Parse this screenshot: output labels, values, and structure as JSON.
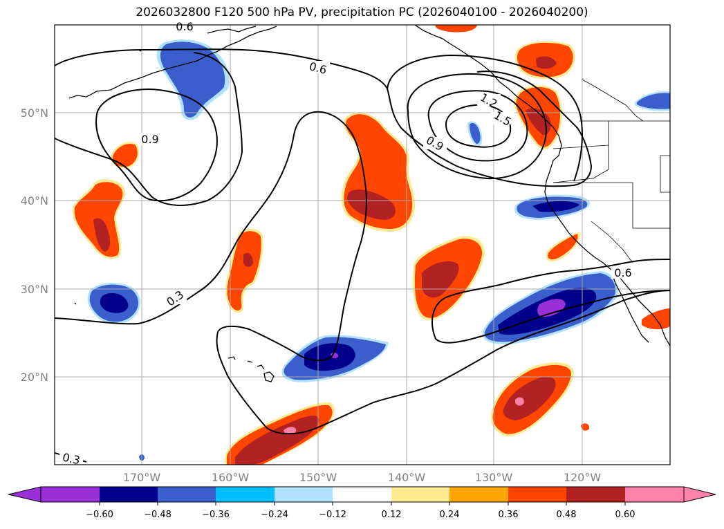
{
  "title": "2026032800 F120 500 hPa PV, precipitation PC (2026040100 - 2026040200)",
  "lat_labels": [
    "50°N",
    "40°N",
    "30°N",
    "20°N"
  ],
  "lon_labels": [
    "170°W",
    "160°W",
    "150°W",
    "140°W",
    "130°W",
    "120°W"
  ],
  "contour_labels": [
    "0.6",
    "0.6",
    "0.9",
    "0.3",
    "1.2",
    "1.5",
    "0.9",
    "0.6",
    "0.3"
  ],
  "colorbar": {
    "ticks": [
      "−0.60",
      "−0.48",
      "−0.36",
      "−0.24",
      "−0.12",
      "0.12",
      "0.24",
      "0.36",
      "0.48",
      "0.60"
    ],
    "colors": [
      "#9b30d8",
      "#00008b",
      "#3a5fcd",
      "#00bfff",
      "#b0e2ff",
      "#ffffff",
      "#ffe991",
      "#ffa500",
      "#ff4500",
      "#b22222",
      "#ff82ab",
      "#ff82ab"
    ]
  },
  "map": {
    "extent": {
      "lon_min": -180,
      "lon_max": -110,
      "lat_min": 10,
      "lat_max": 60
    },
    "gridline_lons": [
      -170,
      -160,
      -150,
      -140,
      -130,
      -120
    ],
    "gridline_lats": [
      50,
      40,
      30,
      20
    ]
  }
}
